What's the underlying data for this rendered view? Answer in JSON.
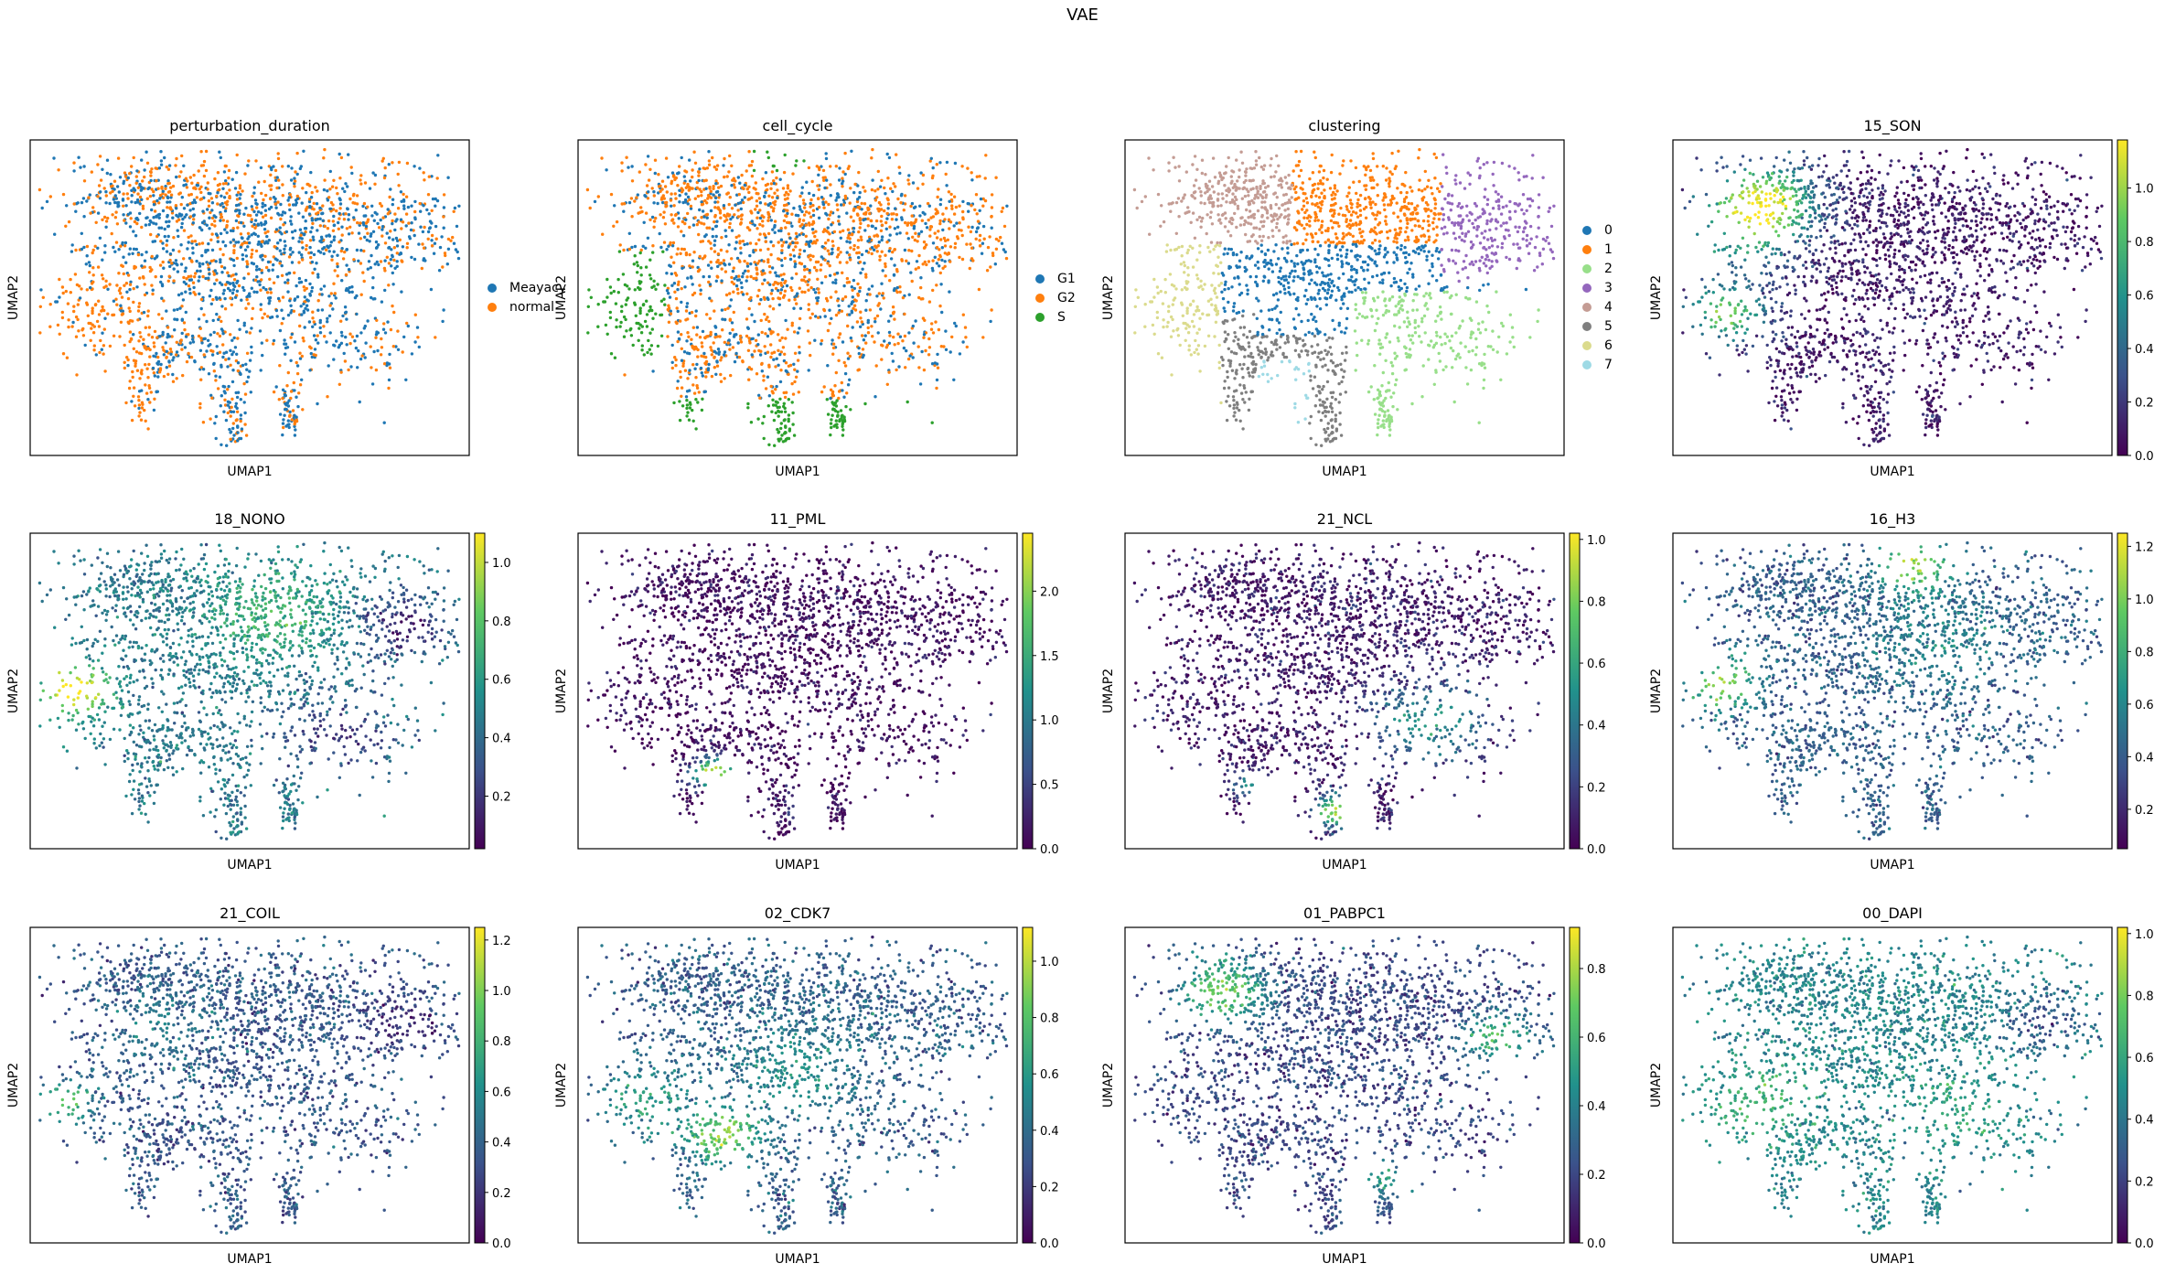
{
  "figure": {
    "title": "VAE"
  },
  "colormap": [
    "#440154",
    "#3b528b",
    "#21918c",
    "#5ec962",
    "#fde725"
  ],
  "chart_data": [
    {
      "type": "scatter",
      "title": "perturbation_duration",
      "xlabel": "UMAP1",
      "ylabel": "UMAP2",
      "mode": "categorical",
      "categories": [
        "Meayacy",
        "normal"
      ],
      "colors": [
        "#1f77b4",
        "#ff7f0e"
      ],
      "grid": false,
      "legend": "right"
    },
    {
      "type": "scatter",
      "title": "cell_cycle",
      "xlabel": "UMAP1",
      "ylabel": "UMAP2",
      "mode": "categorical",
      "categories": [
        "G1",
        "G2",
        "S"
      ],
      "colors": [
        "#1f77b4",
        "#ff7f0e",
        "#2ca02c"
      ],
      "grid": false,
      "legend": "right"
    },
    {
      "type": "scatter",
      "title": "clustering",
      "xlabel": "UMAP1",
      "ylabel": "UMAP2",
      "mode": "categorical",
      "categories": [
        "0",
        "1",
        "2",
        "3",
        "4",
        "5",
        "6",
        "7"
      ],
      "colors": [
        "#1f77b4",
        "#ff7f0e",
        "#98df8a",
        "#9467bd",
        "#c49c94",
        "#7f7f7f",
        "#dbdb8d",
        "#9edae5"
      ],
      "grid": false,
      "legend": "right"
    },
    {
      "type": "scatter",
      "title": "15_SON",
      "xlabel": "UMAP1",
      "ylabel": "UMAP2",
      "mode": "continuous",
      "vmin": 0,
      "vmax": 1.18,
      "colorbar_ticks": [
        "0.0",
        "0.2",
        "0.4",
        "0.6",
        "0.8",
        "1.0"
      ],
      "grid": false
    },
    {
      "type": "scatter",
      "title": "18_NONO",
      "xlabel": "UMAP1",
      "ylabel": "UMAP2",
      "mode": "continuous",
      "vmin": 0.02,
      "vmax": 1.1,
      "colorbar_ticks": [
        "0.2",
        "0.4",
        "0.6",
        "0.8",
        "1.0"
      ],
      "grid": false
    },
    {
      "type": "scatter",
      "title": "11_PML",
      "xlabel": "UMAP1",
      "ylabel": "UMAP2",
      "mode": "continuous",
      "vmin": 0,
      "vmax": 2.45,
      "colorbar_ticks": [
        "0.0",
        "0.5",
        "1.0",
        "1.5",
        "2.0"
      ],
      "grid": false
    },
    {
      "type": "scatter",
      "title": "21_NCL",
      "xlabel": "UMAP1",
      "ylabel": "UMAP2",
      "mode": "continuous",
      "vmin": 0,
      "vmax": 1.02,
      "colorbar_ticks": [
        "0.0",
        "0.2",
        "0.4",
        "0.6",
        "0.8",
        "1.0"
      ],
      "grid": false
    },
    {
      "type": "scatter",
      "title": "16_H3",
      "xlabel": "UMAP1",
      "ylabel": "UMAP2",
      "mode": "continuous",
      "vmin": 0.05,
      "vmax": 1.25,
      "colorbar_ticks": [
        "0.2",
        "0.4",
        "0.6",
        "0.8",
        "1.0",
        "1.2"
      ],
      "grid": false
    },
    {
      "type": "scatter",
      "title": "21_COIL",
      "xlabel": "UMAP1",
      "ylabel": "UMAP2",
      "mode": "continuous",
      "vmin": 0,
      "vmax": 1.25,
      "colorbar_ticks": [
        "0.0",
        "0.2",
        "0.4",
        "0.6",
        "0.8",
        "1.0",
        "1.2"
      ],
      "grid": false
    },
    {
      "type": "scatter",
      "title": "02_CDK7",
      "xlabel": "UMAP1",
      "ylabel": "UMAP2",
      "mode": "continuous",
      "vmin": 0,
      "vmax": 1.12,
      "colorbar_ticks": [
        "0.0",
        "0.2",
        "0.4",
        "0.6",
        "0.8",
        "1.0"
      ],
      "grid": false
    },
    {
      "type": "scatter",
      "title": "01_PABPC1",
      "xlabel": "UMAP1",
      "ylabel": "UMAP2",
      "mode": "continuous",
      "vmin": 0,
      "vmax": 0.92,
      "colorbar_ticks": [
        "0.0",
        "0.2",
        "0.4",
        "0.6",
        "0.8"
      ],
      "grid": false
    },
    {
      "type": "scatter",
      "title": "00_DAPI",
      "xlabel": "UMAP1",
      "ylabel": "UMAP2",
      "mode": "continuous",
      "vmin": 0,
      "vmax": 1.02,
      "colorbar_ticks": [
        "0.0",
        "0.2",
        "0.4",
        "0.6",
        "0.8",
        "1.0"
      ],
      "grid": false
    }
  ]
}
